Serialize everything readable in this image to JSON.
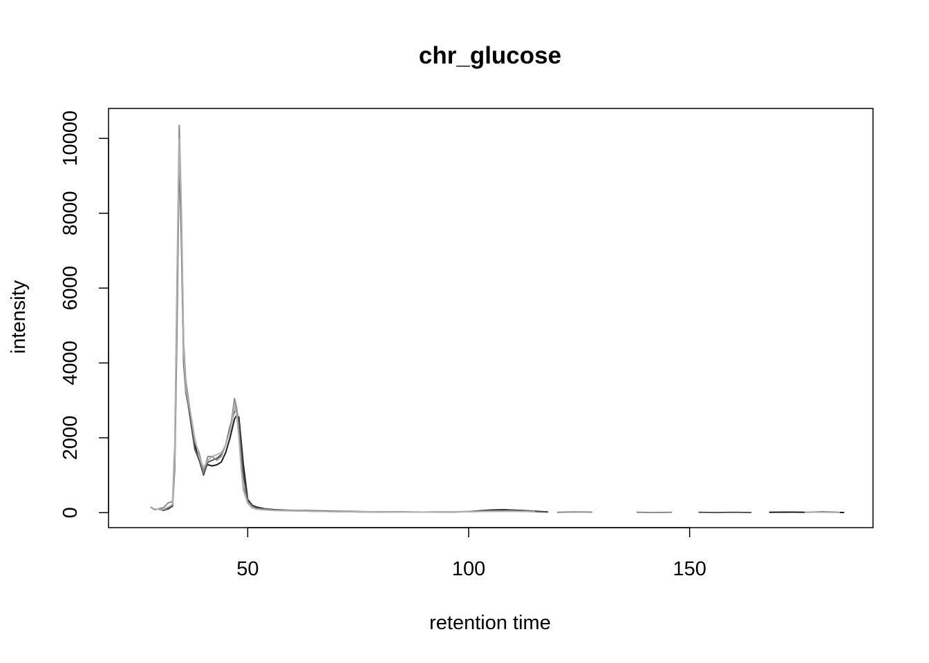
{
  "chart_data": {
    "type": "line",
    "title": "chr_glucose",
    "xlabel": "retention time",
    "ylabel": "intensity",
    "xlim": [
      18.5,
      191.5
    ],
    "ylim": [
      -400,
      10800
    ],
    "x_ticks": [
      50,
      100,
      150
    ],
    "y_ticks": [
      0,
      2000,
      4000,
      6000,
      8000,
      10000
    ],
    "grid": false,
    "legend": "none",
    "series": [
      {
        "color": "#1a1a1a",
        "segments": [
          {
            "x": [
              30,
              31,
              32,
              33,
              33.5,
              34,
              34.5,
              35,
              35.5,
              36,
              36.5,
              37,
              38,
              39,
              40,
              41,
              42,
              43,
              44,
              45,
              46,
              47,
              47.5,
              48,
              49,
              50,
              51,
              52,
              54,
              56,
              60,
              65,
              70,
              75,
              80,
              85,
              90,
              95,
              100,
              105,
              108,
              112,
              115,
              118
            ],
            "y": [
              120,
              70,
              100,
              180,
              1500,
              5500,
              10100,
              7500,
              4200,
              3400,
              3000,
              2600,
              1800,
              1500,
              1200,
              1280,
              1250,
              1280,
              1350,
              1600,
              2000,
              2500,
              2600,
              2550,
              1300,
              350,
              200,
              150,
              100,
              80,
              60,
              50,
              40,
              30,
              20,
              20,
              15,
              15,
              30,
              70,
              80,
              60,
              40,
              20
            ]
          },
          {
            "x": [
              168,
              172,
              176,
              180,
              185
            ],
            "y": [
              10,
              15,
              10,
              20,
              5
            ]
          }
        ]
      },
      {
        "color": "#555555",
        "segments": [
          {
            "x": [
              30,
              31,
              32,
              33,
              33.5,
              34,
              34.5,
              35,
              35.5,
              36,
              36.5,
              37,
              38,
              39,
              40,
              41,
              42,
              43,
              44,
              45,
              46,
              47,
              47.5,
              48,
              49,
              50,
              51,
              52,
              54,
              56,
              60,
              65,
              70,
              75,
              80,
              85,
              90,
              95,
              100,
              105,
              110,
              115,
              118
            ],
            "y": [
              90,
              60,
              120,
              200,
              1200,
              5000,
              9600,
              7200,
              4000,
              3200,
              2900,
              2500,
              1700,
              1400,
              1000,
              1350,
              1400,
              1450,
              1550,
              1800,
              2300,
              2700,
              2750,
              2400,
              1000,
              300,
              180,
              130,
              90,
              70,
              55,
              40,
              30,
              20,
              20,
              15,
              15,
              20,
              25,
              50,
              60,
              30,
              15
            ]
          },
          {
            "x": [
              152,
              156,
              160,
              164
            ],
            "y": [
              10,
              5,
              10,
              5
            ]
          }
        ]
      },
      {
        "color": "#8a8a8a",
        "segments": [
          {
            "x": [
              28,
              29,
              30,
              31,
              32,
              33,
              33.5,
              34,
              34.5,
              35,
              35.5,
              36,
              36.5,
              37,
              38,
              39,
              40,
              41,
              42,
              43,
              44,
              45,
              46,
              46.5,
              47,
              47.5,
              48,
              48.5,
              49,
              50,
              51,
              52,
              54,
              56,
              60,
              65,
              70,
              75,
              80,
              85,
              90,
              95,
              100,
              105,
              110,
              115
            ],
            "y": [
              150,
              80,
              100,
              140,
              260,
              300,
              1800,
              6200,
              10350,
              8000,
              4500,
              3500,
              3100,
              2700,
              1900,
              1600,
              1100,
              1500,
              1500,
              1400,
              1500,
              1800,
              2200,
              2600,
              3050,
              2800,
              2100,
              1300,
              700,
              300,
              150,
              100,
              80,
              60,
              50,
              40,
              30,
              25,
              20,
              15,
              15,
              20,
              30,
              40,
              40,
              30
            ]
          },
          {
            "x": [
              120,
              124,
              128
            ],
            "y": [
              10,
              20,
              15
            ]
          },
          {
            "x": [
              138,
              142,
              146
            ],
            "y": [
              10,
              5,
              10
            ]
          }
        ]
      },
      {
        "color": "#b0b0b0",
        "segments": [
          {
            "x": [
              29,
              30,
              31,
              32,
              33,
              33.5,
              34,
              34.5,
              35,
              35.5,
              36,
              36.5,
              37,
              38,
              39,
              40,
              41,
              42,
              43,
              44,
              45,
              46,
              46.5,
              47,
              47.5,
              48,
              48.5,
              49,
              50,
              51,
              52,
              54,
              56,
              60,
              65,
              70,
              75,
              80,
              85,
              90,
              95,
              100,
              105,
              110,
              115
            ],
            "y": [
              100,
              80,
              90,
              150,
              220,
              1400,
              5800,
              10000,
              7800,
              4300,
              3300,
              3000,
              2700,
              2000,
              1500,
              1200,
              1400,
              1500,
              1550,
              1600,
              1800,
              2200,
              2450,
              2900,
              2600,
              2000,
              1200,
              600,
              250,
              130,
              90,
              70,
              60,
              50,
              40,
              30,
              25,
              20,
              15,
              15,
              20,
              25,
              35,
              35,
              25
            ]
          },
          {
            "x": [
              176,
              180,
              184
            ],
            "y": [
              15,
              10,
              5
            ]
          }
        ]
      }
    ]
  }
}
